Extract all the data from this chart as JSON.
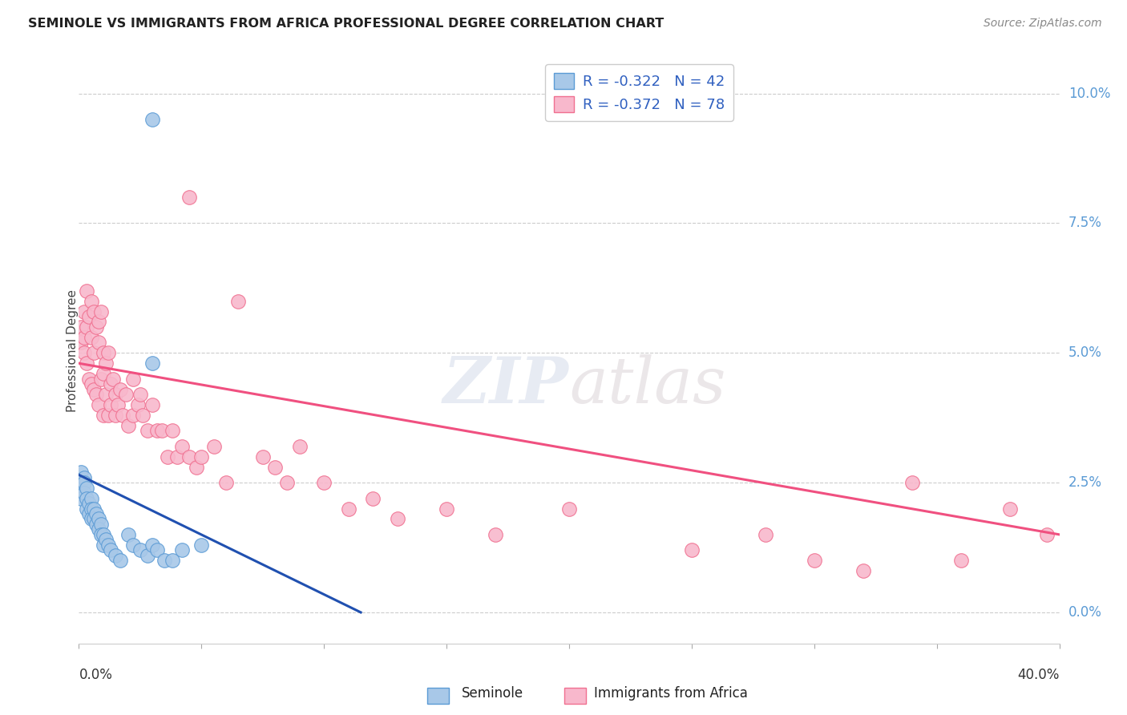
{
  "title": "SEMINOLE VS IMMIGRANTS FROM AFRICA PROFESSIONAL DEGREE CORRELATION CHART",
  "source": "Source: ZipAtlas.com",
  "ylabel": "Professional Degree",
  "ytick_vals": [
    0.0,
    0.025,
    0.05,
    0.075,
    0.1
  ],
  "ytick_labels": [
    "0.0%",
    "2.5%",
    "5.0%",
    "7.5%",
    "10.0%"
  ],
  "xmin": 0.0,
  "xmax": 0.4,
  "ymin": -0.006,
  "ymax": 0.107,
  "seminole_color": "#a8c8e8",
  "seminole_edge": "#5b9bd5",
  "africa_color": "#f8b8cc",
  "africa_edge": "#f07090",
  "trend_blue": "#2050b0",
  "trend_pink": "#f05080",
  "watermark_zip": "ZIP",
  "watermark_atlas": "atlas",
  "seminole_x": [
    0.0,
    0.001,
    0.001,
    0.001,
    0.002,
    0.002,
    0.002,
    0.003,
    0.003,
    0.003,
    0.004,
    0.004,
    0.005,
    0.005,
    0.005,
    0.006,
    0.006,
    0.007,
    0.007,
    0.008,
    0.008,
    0.009,
    0.009,
    0.01,
    0.01,
    0.011,
    0.012,
    0.013,
    0.015,
    0.017,
    0.02,
    0.022,
    0.025,
    0.028,
    0.03,
    0.032,
    0.035,
    0.038,
    0.042,
    0.05,
    0.03,
    0.03
  ],
  "seminole_y": [
    0.024,
    0.027,
    0.025,
    0.022,
    0.026,
    0.025,
    0.023,
    0.024,
    0.022,
    0.02,
    0.021,
    0.019,
    0.022,
    0.02,
    0.018,
    0.02,
    0.018,
    0.019,
    0.017,
    0.018,
    0.016,
    0.017,
    0.015,
    0.015,
    0.013,
    0.014,
    0.013,
    0.012,
    0.011,
    0.01,
    0.015,
    0.013,
    0.012,
    0.011,
    0.013,
    0.012,
    0.01,
    0.01,
    0.012,
    0.013,
    0.048,
    0.095
  ],
  "africa_x": [
    0.001,
    0.001,
    0.002,
    0.002,
    0.002,
    0.003,
    0.003,
    0.003,
    0.004,
    0.004,
    0.005,
    0.005,
    0.005,
    0.006,
    0.006,
    0.006,
    0.007,
    0.007,
    0.008,
    0.008,
    0.008,
    0.009,
    0.009,
    0.01,
    0.01,
    0.01,
    0.011,
    0.011,
    0.012,
    0.012,
    0.013,
    0.013,
    0.014,
    0.015,
    0.015,
    0.016,
    0.017,
    0.018,
    0.019,
    0.02,
    0.022,
    0.022,
    0.024,
    0.025,
    0.026,
    0.028,
    0.03,
    0.032,
    0.034,
    0.036,
    0.038,
    0.04,
    0.042,
    0.045,
    0.048,
    0.05,
    0.055,
    0.06,
    0.065,
    0.075,
    0.08,
    0.085,
    0.09,
    0.1,
    0.11,
    0.12,
    0.13,
    0.15,
    0.17,
    0.2,
    0.25,
    0.28,
    0.3,
    0.32,
    0.34,
    0.36,
    0.38,
    0.395
  ],
  "africa_y": [
    0.055,
    0.052,
    0.058,
    0.053,
    0.05,
    0.062,
    0.055,
    0.048,
    0.057,
    0.045,
    0.06,
    0.053,
    0.044,
    0.058,
    0.05,
    0.043,
    0.055,
    0.042,
    0.056,
    0.052,
    0.04,
    0.058,
    0.045,
    0.05,
    0.038,
    0.046,
    0.048,
    0.042,
    0.05,
    0.038,
    0.044,
    0.04,
    0.045,
    0.038,
    0.042,
    0.04,
    0.043,
    0.038,
    0.042,
    0.036,
    0.038,
    0.045,
    0.04,
    0.042,
    0.038,
    0.035,
    0.04,
    0.035,
    0.035,
    0.03,
    0.035,
    0.03,
    0.032,
    0.03,
    0.028,
    0.03,
    0.032,
    0.025,
    0.06,
    0.03,
    0.028,
    0.025,
    0.032,
    0.025,
    0.02,
    0.022,
    0.018,
    0.02,
    0.015,
    0.02,
    0.012,
    0.015,
    0.01,
    0.008,
    0.025,
    0.01,
    0.02,
    0.015
  ],
  "africa_outlier_x": [
    0.045
  ],
  "africa_outlier_y": [
    0.08
  ],
  "seminole_trend_x": [
    0.0,
    0.115
  ],
  "seminole_trend_y": [
    0.0265,
    0.0
  ],
  "africa_trend_x": [
    0.0,
    0.4
  ],
  "africa_trend_y": [
    0.048,
    0.015
  ]
}
